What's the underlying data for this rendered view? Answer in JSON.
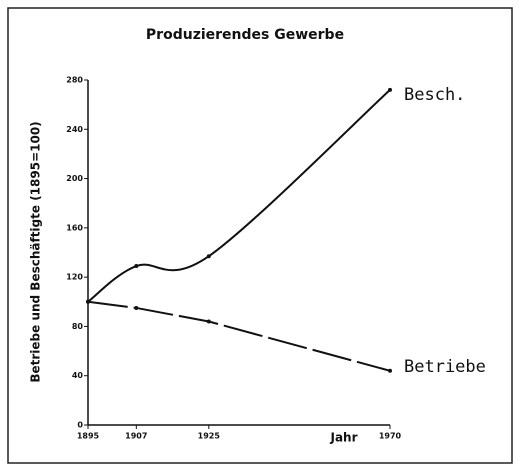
{
  "chart_data": {
    "type": "line",
    "title": "Produzierendes Gewerbe",
    "y_label": "Betriebe und Beschäftigte (1895=100)",
    "x_label": "Jahr",
    "x": [
      1895,
      1907,
      1925,
      1970
    ],
    "series": [
      {
        "name": "Besch.",
        "color": "#111111",
        "style": "solid",
        "values": [
          100,
          129,
          137,
          272
        ]
      },
      {
        "name": "Betriebe",
        "color": "#111111",
        "style": "dashed",
        "values": [
          100,
          95,
          84,
          44
        ]
      }
    ],
    "xlim": [
      1895,
      1970
    ],
    "xticks": [
      1895,
      1907,
      1925,
      1970
    ],
    "ylim": [
      0,
      280
    ],
    "yticks": [
      0,
      40,
      80,
      120,
      160,
      200,
      240,
      280
    ],
    "grid": false
  }
}
